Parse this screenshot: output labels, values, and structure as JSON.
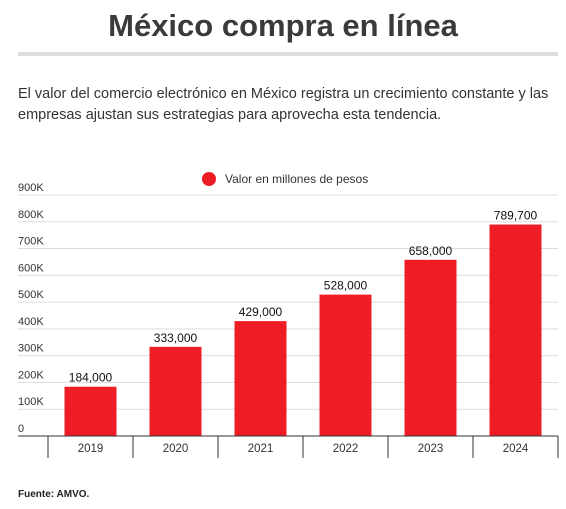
{
  "header": {
    "title": "México compra en línea",
    "subtitle": "El valor del comercio electrónico en México registra un crecimiento constante y las empresas ajustan sus estrategias para aprovecha esta tendencia."
  },
  "footer": {
    "source": "Fuente: AMVO."
  },
  "colors": {
    "bar": "#ee1c25",
    "grid": "#dddddd",
    "axis": "#333333"
  },
  "chart_data": {
    "type": "bar",
    "categories": [
      "2019",
      "2020",
      "2021",
      "2022",
      "2023",
      "2024"
    ],
    "series": [
      {
        "name": "Valor en millones de pesos",
        "values": [
          184000,
          333000,
          429000,
          528000,
          658000,
          789700
        ]
      }
    ],
    "data_labels": [
      "184,000",
      "333,000",
      "429,000",
      "528,000",
      "658,000",
      "789,700"
    ],
    "yticks": [
      {
        "value": 0,
        "label": "0"
      },
      {
        "value": 100000,
        "label": "100K"
      },
      {
        "value": 200000,
        "label": "200K"
      },
      {
        "value": 300000,
        "label": "300K"
      },
      {
        "value": 400000,
        "label": "400K"
      },
      {
        "value": 500000,
        "label": "500K"
      },
      {
        "value": 600000,
        "label": "600K"
      },
      {
        "value": 700000,
        "label": "700K"
      },
      {
        "value": 800000,
        "label": "800K"
      },
      {
        "value": 900000,
        "label": "900K"
      }
    ],
    "ylim": [
      0,
      900000
    ],
    "grid": true,
    "legend_position": "top-center",
    "xlabel": "",
    "ylabel": ""
  }
}
